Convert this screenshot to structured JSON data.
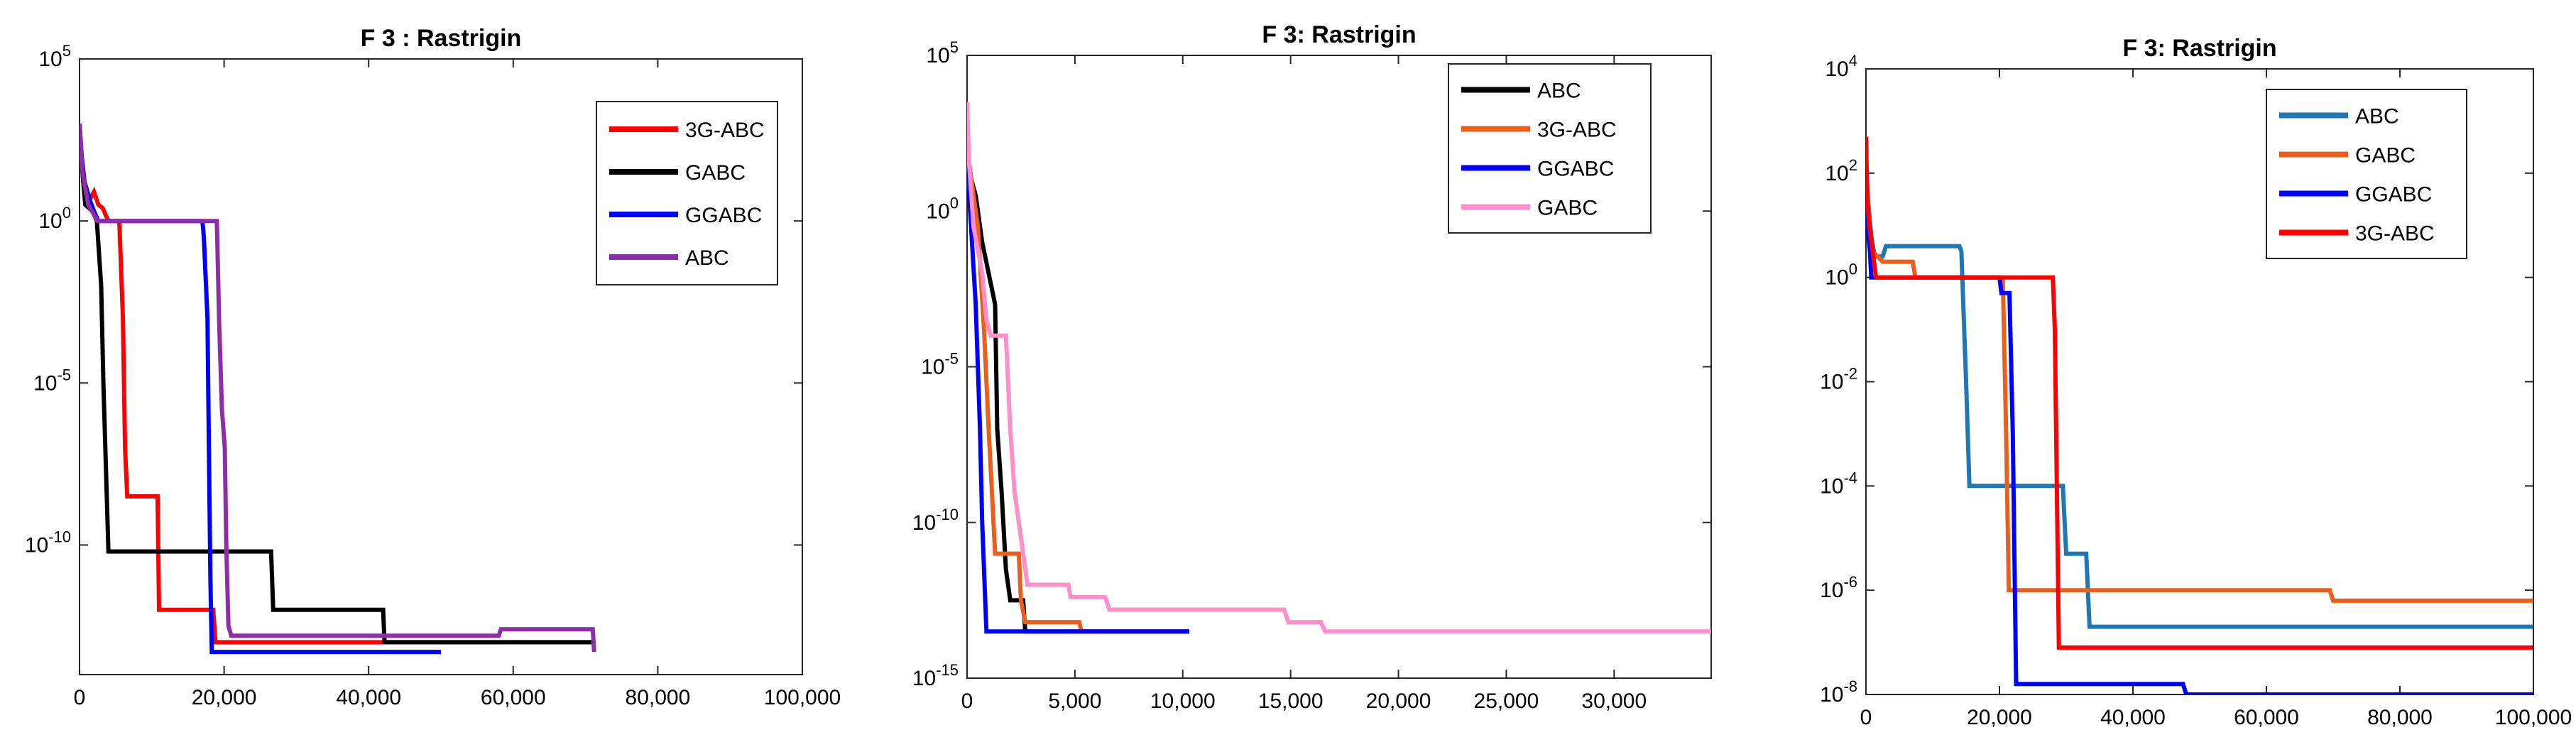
{
  "chart_data": [
    {
      "type": "line",
      "title": "F 3 : Rastrigin",
      "xlabel": "",
      "ylabel": "",
      "yscale": "log",
      "xlim": [
        0,
        100000
      ],
      "ylim_exponent": [
        -14,
        5
      ],
      "xticks": [
        0,
        20000,
        40000,
        60000,
        80000,
        100000
      ],
      "xtick_labels": [
        "0",
        "20,000",
        "40,000",
        "60,000",
        "80,000",
        "100,000"
      ],
      "yticks": [
        {
          "base": "10",
          "exp": "5",
          "value_exp": 5
        },
        {
          "base": "10",
          "exp": "0",
          "value_exp": 0
        },
        {
          "base": "10",
          "exp": "-5",
          "value_exp": -5
        },
        {
          "base": "10",
          "exp": "-10",
          "value_exp": -10
        }
      ],
      "grid": false,
      "legend_position": "top-right",
      "series": [
        {
          "name": "3G-ABC",
          "color": "#ff0000",
          "points": [
            [
              0,
              3
            ],
            [
              300,
              1.8
            ],
            [
              700,
              0.8
            ],
            [
              1500,
              0.7
            ],
            [
              2000,
              0.9
            ],
            [
              2600,
              0.5
            ],
            [
              3200,
              0.4
            ],
            [
              4000,
              0
            ],
            [
              5500,
              0
            ],
            [
              6000,
              -3
            ],
            [
              6300,
              -7
            ],
            [
              6600,
              -8.5
            ],
            [
              10800,
              -8.5
            ],
            [
              11000,
              -12
            ],
            [
              18500,
              -12
            ],
            [
              18800,
              -13
            ],
            [
              71000,
              -13
            ]
          ]
        },
        {
          "name": "GABC",
          "color": "#000000",
          "points": [
            [
              0,
              3
            ],
            [
              400,
              1.5
            ],
            [
              800,
              0.5
            ],
            [
              1800,
              0.3
            ],
            [
              2400,
              0
            ],
            [
              3000,
              -2
            ],
            [
              3300,
              -5
            ],
            [
              3700,
              -8
            ],
            [
              4000,
              -10.2
            ],
            [
              26500,
              -10.2
            ],
            [
              26800,
              -12
            ],
            [
              42000,
              -12
            ],
            [
              42200,
              -13
            ],
            [
              71000,
              -13
            ]
          ]
        },
        {
          "name": "GGABC",
          "color": "#0000ff",
          "points": [
            [
              0,
              3
            ],
            [
              300,
              2
            ],
            [
              700,
              1.2
            ],
            [
              1500,
              0.6
            ],
            [
              2000,
              0.3
            ],
            [
              2600,
              0
            ],
            [
              17000,
              0
            ],
            [
              17200,
              -0.5
            ],
            [
              17700,
              -3
            ],
            [
              17900,
              -7
            ],
            [
              18100,
              -11
            ],
            [
              18300,
              -13.3
            ],
            [
              50000,
              -13.3
            ]
          ]
        },
        {
          "name": "ABC",
          "color": "#8e2ea6",
          "points": [
            [
              0,
              3
            ],
            [
              400,
              1.5
            ],
            [
              1200,
              0.5
            ],
            [
              2500,
              0
            ],
            [
              19000,
              0
            ],
            [
              19300,
              -3
            ],
            [
              19700,
              -5.8
            ],
            [
              20100,
              -7
            ],
            [
              20300,
              -10
            ],
            [
              20600,
              -12.5
            ],
            [
              21000,
              -12.8
            ],
            [
              58000,
              -12.8
            ],
            [
              58300,
              -12.6
            ],
            [
              71000,
              -12.6
            ],
            [
              71200,
              -13.3
            ]
          ]
        }
      ]
    },
    {
      "type": "line",
      "title": "F 3: Rastrigin",
      "xlabel": "",
      "ylabel": "",
      "yscale": "log",
      "xlim": [
        0,
        34500
      ],
      "ylim_exponent": [
        -15,
        5
      ],
      "xticks": [
        0,
        5000,
        10000,
        15000,
        20000,
        25000,
        30000
      ],
      "xtick_labels": [
        "0",
        "5,000",
        "10,000",
        "15,000",
        "20,000",
        "25,000",
        "30,000"
      ],
      "yticks": [
        {
          "base": "10",
          "exp": "5",
          "value_exp": 5
        },
        {
          "base": "10",
          "exp": "0",
          "value_exp": 0
        },
        {
          "base": "10",
          "exp": "-5",
          "value_exp": -5
        },
        {
          "base": "10",
          "exp": "-10",
          "value_exp": -10
        },
        {
          "base": "10",
          "exp": "-15",
          "value_exp": -15
        }
      ],
      "grid": false,
      "legend_position": "top-right",
      "series": [
        {
          "name": "ABC",
          "color": "#000000",
          "points": [
            [
              0,
              2
            ],
            [
              200,
              1
            ],
            [
              400,
              0.5
            ],
            [
              700,
              -1
            ],
            [
              1000,
              -2
            ],
            [
              1300,
              -3
            ],
            [
              1400,
              -7
            ],
            [
              1600,
              -9
            ],
            [
              1800,
              -11.5
            ],
            [
              2000,
              -12.5
            ],
            [
              2600,
              -12.5
            ],
            [
              2700,
              -13.5
            ],
            [
              10300,
              -13.5
            ]
          ]
        },
        {
          "name": "3G-ABC",
          "color": "#e8601c",
          "points": [
            [
              0,
              2
            ],
            [
              200,
              1
            ],
            [
              500,
              -0.5
            ],
            [
              800,
              -4
            ],
            [
              1000,
              -7
            ],
            [
              1300,
              -11
            ],
            [
              2400,
              -11
            ],
            [
              2500,
              -12.5
            ],
            [
              2700,
              -13.2
            ],
            [
              5200,
              -13.2
            ],
            [
              5300,
              -13.5
            ],
            [
              10300,
              -13.5
            ]
          ]
        },
        {
          "name": "GGABC",
          "color": "#0000ff",
          "points": [
            [
              0,
              2
            ],
            [
              100,
              0.5
            ],
            [
              400,
              -3
            ],
            [
              600,
              -7
            ],
            [
              700,
              -10
            ],
            [
              900,
              -13.5
            ],
            [
              10300,
              -13.5
            ]
          ]
        },
        {
          "name": "GABC",
          "color": "#ff8fc8",
          "points": [
            [
              0,
              3.5
            ],
            [
              100,
              1.5
            ],
            [
              300,
              -0.5
            ],
            [
              700,
              -2
            ],
            [
              900,
              -3.5
            ],
            [
              1100,
              -4
            ],
            [
              1800,
              -4
            ],
            [
              2000,
              -7
            ],
            [
              2200,
              -9
            ],
            [
              2600,
              -11
            ],
            [
              2800,
              -12
            ],
            [
              4700,
              -12
            ],
            [
              4800,
              -12.4
            ],
            [
              6400,
              -12.4
            ],
            [
              6600,
              -12.8
            ],
            [
              14700,
              -12.8
            ],
            [
              14900,
              -13.2
            ],
            [
              16400,
              -13.2
            ],
            [
              16600,
              -13.5
            ],
            [
              34500,
              -13.5
            ]
          ]
        }
      ]
    },
    {
      "type": "line",
      "title": "F 3: Rastrigin",
      "xlabel": "",
      "ylabel": "",
      "yscale": "log",
      "xlim": [
        0,
        100000
      ],
      "ylim_exponent": [
        -8,
        4
      ],
      "xticks": [
        0,
        20000,
        40000,
        60000,
        80000,
        100000
      ],
      "xtick_labels": [
        "0",
        "20,000",
        "40,000",
        "60,000",
        "80,000",
        "100,000"
      ],
      "yticks": [
        {
          "base": "10",
          "exp": "4",
          "value_exp": 4
        },
        {
          "base": "10",
          "exp": "2",
          "value_exp": 2
        },
        {
          "base": "10",
          "exp": "0",
          "value_exp": 0
        },
        {
          "base": "10",
          "exp": "-2",
          "value_exp": -2
        },
        {
          "base": "10",
          "exp": "-4",
          "value_exp": -4
        },
        {
          "base": "10",
          "exp": "-6",
          "value_exp": -6
        },
        {
          "base": "10",
          "exp": "-8",
          "value_exp": -8
        }
      ],
      "grid": false,
      "legend_position": "top-right",
      "series": [
        {
          "name": "ABC",
          "color": "#1f77b4",
          "points": [
            [
              0,
              2.3
            ],
            [
              300,
              1.5
            ],
            [
              800,
              0.8
            ],
            [
              1300,
              0.4
            ],
            [
              2500,
              0.4
            ],
            [
              3000,
              0.6
            ],
            [
              14000,
              0.6
            ],
            [
              14300,
              0.5
            ],
            [
              15000,
              -2
            ],
            [
              15500,
              -4
            ],
            [
              29500,
              -4
            ],
            [
              30000,
              -5.3
            ],
            [
              33000,
              -5.3
            ],
            [
              33500,
              -6.7
            ],
            [
              100000,
              -6.7
            ]
          ]
        },
        {
          "name": "GABC",
          "color": "#e8601c",
          "points": [
            [
              0,
              2
            ],
            [
              500,
              1
            ],
            [
              1000,
              0.5
            ],
            [
              2500,
              0.3
            ],
            [
              5000,
              0.3
            ],
            [
              7000,
              0.3
            ],
            [
              7400,
              0
            ],
            [
              20500,
              0
            ],
            [
              21000,
              -3
            ],
            [
              21400,
              -6
            ],
            [
              69500,
              -6
            ],
            [
              70000,
              -6.2
            ],
            [
              100000,
              -6.2
            ]
          ]
        },
        {
          "name": "GGABC",
          "color": "#0000ff",
          "points": [
            [
              0,
              2.5
            ],
            [
              200,
              1
            ],
            [
              600,
              0.5
            ],
            [
              800,
              0
            ],
            [
              20000,
              0
            ],
            [
              20300,
              -0.3
            ],
            [
              21500,
              -0.3
            ],
            [
              22000,
              -3
            ],
            [
              22500,
              -7.8
            ],
            [
              47500,
              -7.8
            ],
            [
              48000,
              -8
            ],
            [
              100000,
              -8
            ]
          ]
        },
        {
          "name": "3G-ABC",
          "color": "#ff0000",
          "points": [
            [
              0,
              2.7
            ],
            [
              200,
              1.5
            ],
            [
              500,
              1
            ],
            [
              1000,
              0.5
            ],
            [
              1500,
              0
            ],
            [
              28000,
              0
            ],
            [
              28300,
              -1
            ],
            [
              28600,
              -4
            ],
            [
              28900,
              -7.1
            ],
            [
              100000,
              -7.1
            ]
          ]
        }
      ]
    }
  ]
}
